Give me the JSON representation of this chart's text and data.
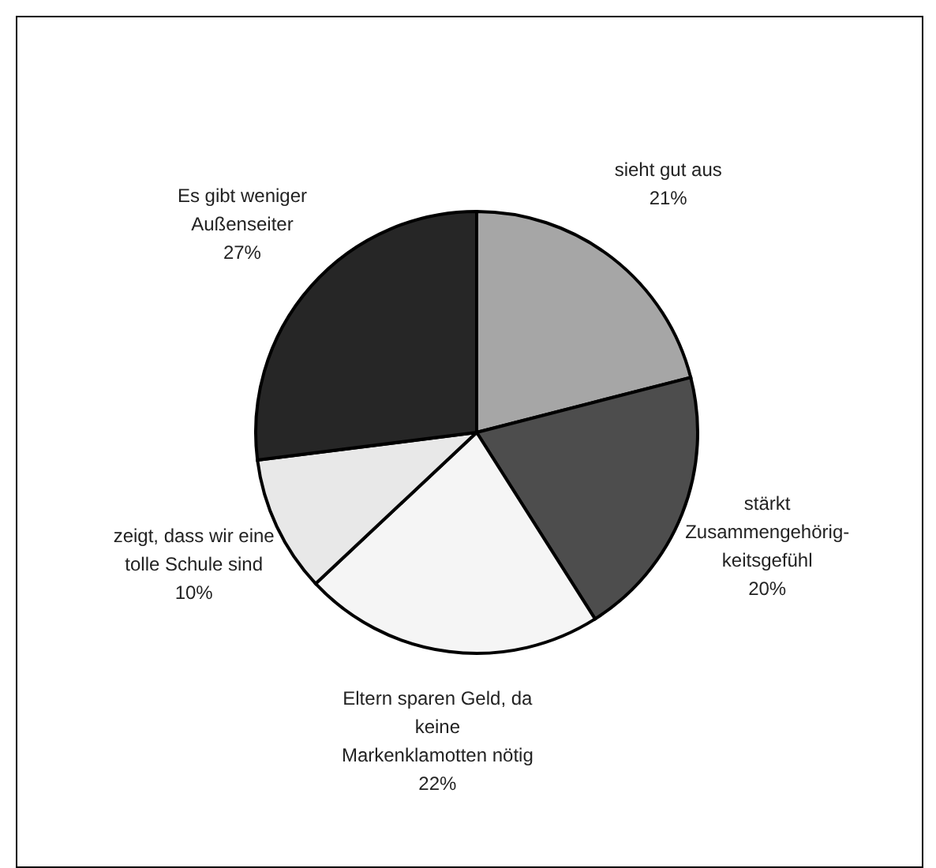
{
  "chart_data": {
    "type": "pie",
    "categories": [
      "sieht gut aus",
      "stärkt\nZusammengehörig-\nkeitsgefühl",
      "Eltern sparen Geld, da\nkeine\nMarkenklamotten nötig",
      "zeigt, dass wir eine\ntolle Schule sind",
      "Es gibt weniger\nAußenseiter"
    ],
    "values": [
      21,
      20,
      22,
      10,
      27
    ],
    "colors": [
      "#a6a6a6",
      "#4d4d4d",
      "#f5f5f5",
      "#e8e8e8",
      "#262626"
    ],
    "value_labels": [
      "21%",
      "20%",
      "22%",
      "10%",
      "27%"
    ]
  }
}
